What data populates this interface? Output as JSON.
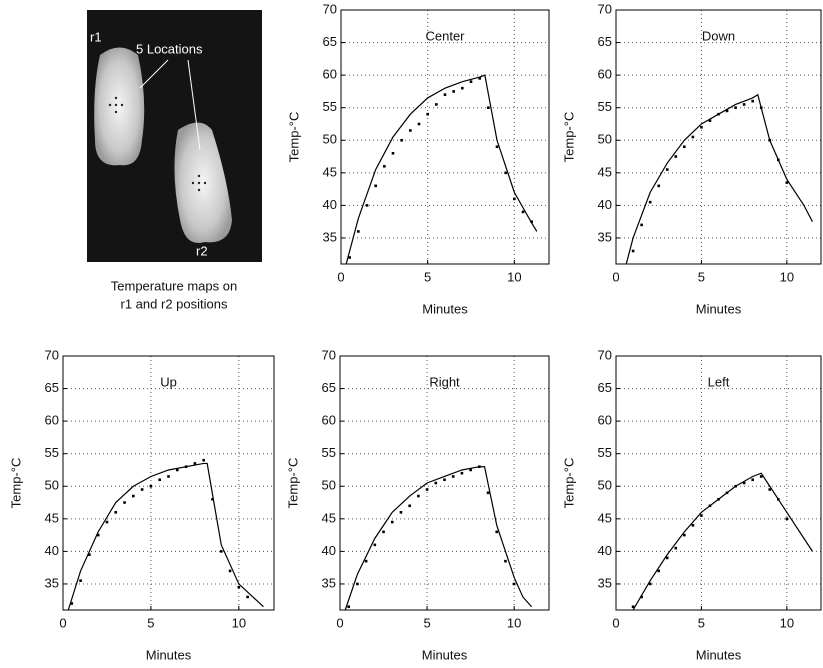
{
  "image_panel": {
    "labels": [
      "r1",
      "5 Locations",
      "r2"
    ],
    "caption": [
      "Temperature maps on",
      "r1 and r2 positions"
    ]
  },
  "chart_data": [
    {
      "type": "line",
      "title": "Center",
      "xlabel": "Minutes",
      "ylabel": "Temp-°C",
      "xlim": [
        0,
        12
      ],
      "ylim": [
        31,
        70
      ],
      "xticks": [
        0,
        5,
        10
      ],
      "yticks": [
        35,
        40,
        45,
        50,
        55,
        60,
        65,
        70
      ],
      "grid": true,
      "series": [
        {
          "mode": "lines",
          "color": "#000000",
          "x": [
            0.3,
            1,
            2,
            3,
            4,
            5,
            6,
            7,
            8,
            8.3,
            9,
            10,
            11,
            11.3
          ],
          "values": [
            31,
            38,
            45.5,
            50.5,
            54,
            56.5,
            58,
            59,
            59.7,
            60,
            50,
            42,
            37.3,
            36
          ]
        },
        {
          "mode": "markers",
          "color": "#000000",
          "x": [
            0.5,
            1,
            1.5,
            2,
            2.5,
            3,
            3.5,
            4,
            4.5,
            5,
            5.5,
            6,
            6.5,
            7,
            7.5,
            8,
            8.5,
            9,
            9.5,
            10,
            10.5,
            11
          ],
          "values": [
            32,
            36,
            40,
            43,
            46,
            48,
            50,
            51.5,
            52.5,
            54,
            55.5,
            57,
            57.5,
            58,
            59,
            59.5,
            55,
            49,
            45,
            41,
            39,
            37.5
          ]
        }
      ]
    },
    {
      "type": "line",
      "title": "Down",
      "xlabel": "Minutes",
      "ylabel": "Temp-°C",
      "xlim": [
        0,
        12
      ],
      "ylim": [
        31,
        70
      ],
      "xticks": [
        0,
        5,
        10
      ],
      "yticks": [
        35,
        40,
        45,
        50,
        55,
        60,
        65,
        70
      ],
      "grid": true,
      "series": [
        {
          "mode": "lines",
          "color": "#000000",
          "x": [
            0.6,
            1,
            2,
            3,
            4,
            5,
            6,
            7,
            8,
            8.3,
            9,
            10,
            11,
            11.5
          ],
          "values": [
            31,
            35,
            42,
            46.5,
            50,
            52.5,
            54,
            55.5,
            56.5,
            57,
            50,
            44,
            40,
            37.5
          ]
        },
        {
          "mode": "markers",
          "color": "#000000",
          "x": [
            1,
            1.5,
            2,
            2.5,
            3,
            3.5,
            4,
            4.5,
            5,
            5.5,
            6,
            6.5,
            7,
            7.5,
            8,
            8.5,
            9,
            9.5,
            10
          ],
          "values": [
            33,
            37,
            40.5,
            43,
            45.5,
            47.5,
            49,
            50.5,
            52,
            53,
            54,
            54.5,
            55,
            55.5,
            56,
            55,
            50,
            47,
            43.5
          ]
        }
      ]
    },
    {
      "type": "line",
      "title": "Up",
      "xlabel": "Minutes",
      "ylabel": "Temp-°C",
      "xlim": [
        0,
        12
      ],
      "ylim": [
        31,
        70
      ],
      "xticks": [
        0,
        5,
        10
      ],
      "yticks": [
        35,
        40,
        45,
        50,
        55,
        60,
        65,
        70
      ],
      "grid": true,
      "series": [
        {
          "mode": "lines",
          "color": "#000000",
          "x": [
            0.3,
            1,
            2,
            3,
            4,
            5,
            6,
            7,
            8,
            8.2,
            9,
            10,
            11,
            11.4
          ],
          "values": [
            31,
            37,
            43,
            47.5,
            50,
            51.5,
            52.5,
            53,
            53.5,
            53.5,
            41,
            35,
            32.5,
            31.5
          ]
        },
        {
          "mode": "markers",
          "color": "#000000",
          "x": [
            0.5,
            1,
            1.5,
            2,
            2.5,
            3,
            3.5,
            4,
            4.5,
            5,
            5.5,
            6,
            6.5,
            7,
            7.5,
            8,
            8.5,
            9,
            9.5,
            10,
            10.5
          ],
          "values": [
            32,
            35.5,
            39.5,
            42.5,
            44.5,
            46,
            47.5,
            48.5,
            49.5,
            50,
            51,
            51.5,
            52.5,
            53,
            53.5,
            54,
            48,
            40,
            37,
            34.5,
            33
          ]
        }
      ]
    },
    {
      "type": "line",
      "title": "Right",
      "xlabel": "Minutes",
      "ylabel": "Temp-°C",
      "xlim": [
        0,
        12
      ],
      "ylim": [
        31,
        70
      ],
      "xticks": [
        0,
        5,
        10
      ],
      "yticks": [
        35,
        40,
        45,
        50,
        55,
        60,
        65,
        70
      ],
      "grid": true,
      "series": [
        {
          "mode": "lines",
          "color": "#000000",
          "x": [
            0.3,
            1,
            2,
            3,
            4,
            5,
            6,
            7,
            8,
            8.3,
            9,
            10,
            10.5,
            11
          ],
          "values": [
            31,
            36.5,
            42,
            46,
            48.5,
            50.5,
            51.5,
            52.5,
            53,
            53,
            44,
            36,
            33,
            31.5
          ]
        },
        {
          "mode": "markers",
          "color": "#000000",
          "x": [
            0.5,
            1,
            1.5,
            2,
            2.5,
            3,
            3.5,
            4,
            4.5,
            5,
            5.5,
            6,
            6.5,
            7,
            7.5,
            8,
            8.5,
            9,
            9.5,
            10
          ],
          "values": [
            31.5,
            35,
            38.5,
            41,
            43,
            44.5,
            46,
            47,
            48.5,
            49.5,
            50.5,
            51,
            51.5,
            52,
            52.5,
            53,
            49,
            43,
            38.5,
            35
          ]
        }
      ]
    },
    {
      "type": "line",
      "title": "Left",
      "xlabel": "Minutes",
      "ylabel": "Temp-°C",
      "xlim": [
        0,
        12
      ],
      "ylim": [
        31,
        70
      ],
      "xticks": [
        0,
        5,
        10
      ],
      "yticks": [
        35,
        40,
        45,
        50,
        55,
        60,
        65,
        70
      ],
      "grid": true,
      "series": [
        {
          "mode": "lines",
          "color": "#000000",
          "x": [
            1,
            2,
            3,
            4,
            5,
            6,
            7,
            8,
            8.5,
            9,
            10,
            11,
            11.5
          ],
          "values": [
            31,
            35.5,
            39.5,
            43,
            46,
            48,
            50,
            51.5,
            52,
            50,
            46,
            42,
            40
          ]
        },
        {
          "mode": "markers",
          "color": "#000000",
          "x": [
            1,
            1.5,
            2,
            2.5,
            3,
            3.5,
            4,
            4.5,
            5,
            5.5,
            6,
            6.5,
            7,
            7.5,
            8,
            8.5,
            9,
            9.5,
            10
          ],
          "values": [
            31.5,
            33,
            35,
            37,
            39,
            40.5,
            42.5,
            44,
            45.5,
            47,
            48,
            49,
            50,
            50.5,
            51,
            51.5,
            49.5,
            48,
            45
          ]
        }
      ]
    }
  ]
}
